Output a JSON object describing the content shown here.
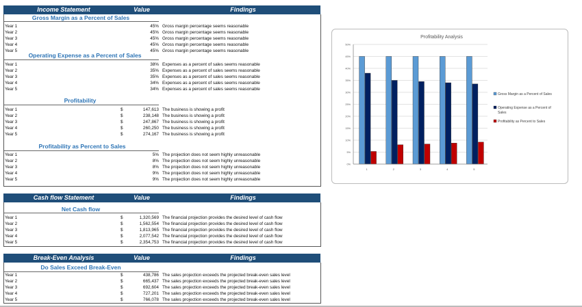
{
  "sections": [
    {
      "header": {
        "title": "Income Statement",
        "value": "Value",
        "findings": "Findings"
      },
      "groups": [
        {
          "subtitle": "Gross Margin as a Percent of Sales",
          "rows": [
            {
              "label": "Year 1",
              "currency": "",
              "value": "45%",
              "finding": "Gross margin percentage seems reasonable"
            },
            {
              "label": "Year 2",
              "currency": "",
              "value": "45%",
              "finding": "Gross margin percentage seems reasonable"
            },
            {
              "label": "Year 3",
              "currency": "",
              "value": "45%",
              "finding": "Gross margin percentage seems reasonable"
            },
            {
              "label": "Year 4",
              "currency": "",
              "value": "45%",
              "finding": "Gross margin percentage seems reasonable"
            },
            {
              "label": "Year 5",
              "currency": "",
              "value": "45%",
              "finding": "Gross margin percentage seems reasonable"
            }
          ]
        },
        {
          "subtitle": "Operating Expense as a Percent of Sales",
          "rows": [
            {
              "label": "Year 1",
              "currency": "",
              "value": "38%",
              "finding": "Expenses as a percent of sales seems reasonable"
            },
            {
              "label": "Year 2",
              "currency": "",
              "value": "35%",
              "finding": "Expenses as a percent of sales seems reasonable"
            },
            {
              "label": "Year 3",
              "currency": "",
              "value": "35%",
              "finding": "Expenses as a percent of sales seems reasonable"
            },
            {
              "label": "Year 4",
              "currency": "",
              "value": "34%",
              "finding": "Expenses as a percent of sales seems reasonable"
            },
            {
              "label": "Year 5",
              "currency": "",
              "value": "34%",
              "finding": "Expenses as a percent of sales seems reasonable"
            }
          ]
        },
        {
          "subtitle": "Profitability",
          "rows": [
            {
              "label": "Year 1",
              "currency": "$",
              "value": "147,613",
              "finding": "The business is showing a profit"
            },
            {
              "label": "Year 2",
              "currency": "$",
              "value": "238,148",
              "finding": "The business is showing a profit"
            },
            {
              "label": "Year 3",
              "currency": "$",
              "value": "247,867",
              "finding": "The business is showing a profit"
            },
            {
              "label": "Year 4",
              "currency": "$",
              "value": "260,250",
              "finding": "The business is showing a profit"
            },
            {
              "label": "Year 5",
              "currency": "$",
              "value": "274,167",
              "finding": "The business is showing a profit"
            }
          ]
        },
        {
          "subtitle": "Profitability as Percent to Sales",
          "rows": [
            {
              "label": "Year 1",
              "currency": "",
              "value": "5%",
              "finding": "The projection does not seem highly unreasonable"
            },
            {
              "label": "Year 2",
              "currency": "",
              "value": "8%",
              "finding": "The projection does not seem highly unreasonable"
            },
            {
              "label": "Year 3",
              "currency": "",
              "value": "8%",
              "finding": "The projection does not seem highly unreasonable"
            },
            {
              "label": "Year 4",
              "currency": "",
              "value": "9%",
              "finding": "The projection does not seem highly unreasonable"
            },
            {
              "label": "Year 5",
              "currency": "",
              "value": "9%",
              "finding": "The projection does not seem highly unreasonable"
            }
          ]
        }
      ]
    },
    {
      "header": {
        "title": "Cash flow Statement",
        "value": "Value",
        "findings": "Findings"
      },
      "groups": [
        {
          "subtitle": "Net Cash flow",
          "rows": [
            {
              "label": "Year 1",
              "currency": "$",
              "value": "1,320,569",
              "finding": "The financial projection provides the desired level of cash flow"
            },
            {
              "label": "Year 2",
              "currency": "$",
              "value": "1,562,554",
              "finding": "The financial projection provides the desired level of cash flow"
            },
            {
              "label": "Year 3",
              "currency": "$",
              "value": "1,813,965",
              "finding": "The financial projection provides the desired level of cash flow"
            },
            {
              "label": "Year 4",
              "currency": "$",
              "value": "2,077,542",
              "finding": "The financial projection provides the desired level of cash flow"
            },
            {
              "label": "Year 5",
              "currency": "$",
              "value": "2,354,753",
              "finding": "The financial projection provides the desired level of cash flow"
            }
          ]
        }
      ]
    },
    {
      "header": {
        "title": "Break-Even Analysis",
        "value": "Value",
        "findings": "Findings"
      },
      "groups": [
        {
          "subtitle": "Do Sales Exceed Break-Even",
          "rows": [
            {
              "label": "Year 1",
              "currency": "$",
              "value": "438,786",
              "finding": "The sales projection exceeds the projected break-even sales level"
            },
            {
              "label": "Year 2",
              "currency": "$",
              "value": "665,437",
              "finding": "The sales projection exceeds the projected break-even sales level"
            },
            {
              "label": "Year 3",
              "currency": "$",
              "value": "692,604",
              "finding": "The sales projection exceeds the projected break-even sales level"
            },
            {
              "label": "Year 4",
              "currency": "$",
              "value": "727,201",
              "finding": "The sales projection exceeds the projected break-even sales level"
            },
            {
              "label": "Year 5",
              "currency": "$",
              "value": "766,078",
              "finding": "The sales projection exceeds the projected break-even sales level"
            }
          ]
        }
      ]
    }
  ],
  "chart_data": {
    "type": "bar",
    "title": "Profitability Analysis",
    "categories": [
      "1",
      "2",
      "3",
      "4",
      "5"
    ],
    "ylim": [
      0,
      50
    ],
    "yticks": [
      "0%",
      "5%",
      "10%",
      "15%",
      "20%",
      "25%",
      "30%",
      "35%",
      "40%",
      "45%",
      "50%"
    ],
    "grid": true,
    "legend_position": "right",
    "series": [
      {
        "name": "Gross Margin as a Percent of Sales",
        "values": [
          45,
          45,
          45,
          45,
          45
        ],
        "color": "#5b9bd5"
      },
      {
        "name": "Operating Expense as a Percent of Sales",
        "values": [
          38,
          35,
          34.5,
          34,
          33.5
        ],
        "color": "#002060"
      },
      {
        "name": "Profitability as Percent to Sales",
        "values": [
          5.3,
          8.1,
          8.4,
          8.8,
          9.2
        ],
        "color": "#c00000"
      }
    ]
  }
}
